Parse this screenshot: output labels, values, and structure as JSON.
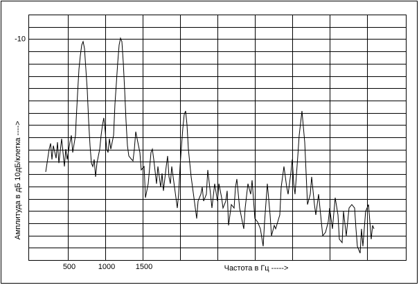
{
  "chart_data": {
    "type": "line",
    "xlabel": "Частота в Гц ----->",
    "ylabel": "Амплитуда в дБ 10дБ/клетка ---->",
    "xlim": [
      0,
      5000
    ],
    "ylim": [
      -100,
      0
    ],
    "xticks": [
      500,
      1000,
      1500
    ],
    "yticks": [
      -10
    ],
    "grid": {
      "x_step": 500,
      "y_step": 5
    },
    "x": [
      204,
      250,
      269,
      287,
      306,
      343,
      361,
      380,
      417,
      454,
      472,
      491,
      528,
      546,
      565,
      602,
      611,
      630,
      648,
      667,
      685,
      704,
      722,
      741,
      759,
      778,
      796,
      815,
      833,
      852,
      870,
      889,
      926,
      944,
      963,
      981,
      1000,
      1019,
      1037,
      1056,
      1074,
      1111,
      1130,
      1148,
      1167,
      1185,
      1204,
      1222,
      1241,
      1259,
      1278,
      1296,
      1315,
      1352,
      1370,
      1389,
      1407,
      1426,
      1463,
      1481,
      1519,
      1537,
      1574,
      1611,
      1630,
      1648,
      1685,
      1704,
      1741,
      1759,
      1778,
      1815,
      1833,
      1852,
      1870,
      1889,
      1926,
      1963,
      1981,
      2000,
      2019,
      2037,
      2056,
      2074,
      2093,
      2111,
      2148,
      2185,
      2222,
      2241,
      2278,
      2296,
      2315,
      2352,
      2370,
      2407,
      2426,
      2463,
      2500,
      2519,
      2556,
      2574,
      2611,
      2630,
      2648,
      2685,
      2722,
      2741,
      2759,
      2796,
      2833,
      2852,
      2870,
      2907,
      2944,
      2963,
      3000,
      3037,
      3074,
      3111,
      3130,
      3167,
      3204,
      3222,
      3259,
      3278,
      3333,
      3352,
      3389,
      3426,
      3444,
      3481,
      3500,
      3519,
      3537,
      3574,
      3593,
      3630,
      3667,
      3685,
      3704,
      3741,
      3759,
      3796,
      3815,
      3852,
      3889,
      3907,
      3944,
      3981,
      4000,
      4037,
      4074,
      4111,
      4130,
      4167,
      4185,
      4222,
      4259,
      4296,
      4333,
      4352,
      4370,
      4407,
      4426,
      4444,
      4481,
      4519,
      4556,
      4574,
      4593
    ],
    "series": [
      {
        "color": "#000000",
        "values": [
          -64.1,
          -54.8,
          -52.5,
          -59.0,
          -53.4,
          -58.5,
          -52.0,
          -60.5,
          -50.6,
          -61.9,
          -54.8,
          -59.0,
          -52.0,
          -49.2,
          -56.2,
          -49.2,
          -42.9,
          -32.2,
          -22.3,
          -16.7,
          -12.4,
          -11.0,
          -13.8,
          -22.3,
          -30.8,
          -43.5,
          -53.4,
          -60.5,
          -61.9,
          -59.0,
          -66.1,
          -60.5,
          -54.8,
          -49.2,
          -44.9,
          -42.1,
          -47.7,
          -54.8,
          -56.2,
          -50.6,
          -54.8,
          -49.2,
          -36.4,
          -28.0,
          -19.5,
          -12.4,
          -9.6,
          -11.0,
          -19.5,
          -30.8,
          -43.5,
          -53.4,
          -57.6,
          -59.0,
          -59.6,
          -54.8,
          -47.7,
          -50.6,
          -56.2,
          -63.3,
          -61.9,
          -74.6,
          -68.9,
          -56.2,
          -54.8,
          -59.0,
          -68.9,
          -61.9,
          -70.3,
          -64.7,
          -71.8,
          -61.9,
          -57.6,
          -66.1,
          -68.9,
          -61.9,
          -70.3,
          -78.8,
          -73.2,
          -61.9,
          -53.4,
          -46.3,
          -40.7,
          -39.3,
          -44.9,
          -54.8,
          -66.1,
          -74.6,
          -83.1,
          -76.0,
          -73.2,
          -70.3,
          -76.0,
          -73.2,
          -63.3,
          -73.2,
          -78.8,
          -68.9,
          -76.0,
          -68.9,
          -74.6,
          -78.8,
          -76.0,
          -71.8,
          -85.9,
          -77.4,
          -78.8,
          -70.3,
          -67.0,
          -78.8,
          -84.5,
          -87.3,
          -78.8,
          -68.9,
          -73.2,
          -67.5,
          -83.1,
          -84.5,
          -87.3,
          -94.4,
          -84.5,
          -68.9,
          -81.6,
          -90.1,
          -85.9,
          -87.3,
          -81.6,
          -70.3,
          -61.9,
          -70.3,
          -73.2,
          -64.7,
          -59.0,
          -68.9,
          -73.2,
          -57.6,
          -49.2,
          -39.3,
          -52.0,
          -64.7,
          -77.4,
          -73.2,
          -66.1,
          -77.4,
          -81.6,
          -73.2,
          -84.5,
          -90.1,
          -88.7,
          -84.5,
          -78.8,
          -87.3,
          -74.6,
          -81.6,
          -91.5,
          -92.9,
          -80.2,
          -90.1,
          -78.8,
          -77.4,
          -78.8,
          -87.3,
          -94.4,
          -97.2,
          -87.3,
          -94.4,
          -80.2,
          -77.4,
          -91.5,
          -85.9,
          -87.3
        ]
      }
    ]
  }
}
